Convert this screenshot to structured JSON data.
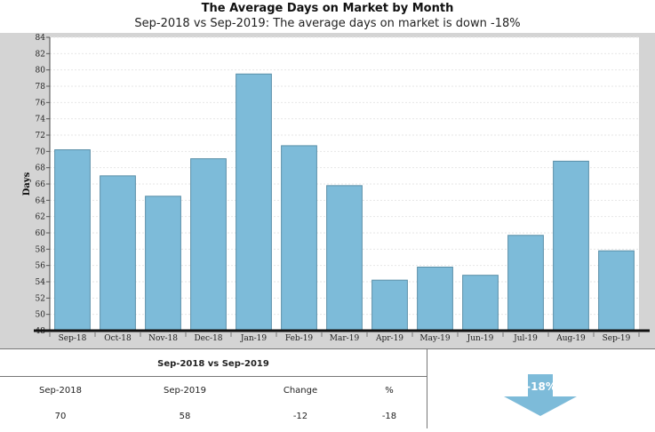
{
  "chart_data": {
    "type": "bar",
    "title": "The Average Days on Market by Month",
    "subtitle": "Sep-2018 vs Sep-2019: The average days on market is down -18%",
    "ylabel": "Days",
    "xlabel": "",
    "ylim": [
      48,
      84
    ],
    "yticks": [
      48,
      50,
      52,
      54,
      56,
      58,
      60,
      62,
      64,
      66,
      68,
      70,
      72,
      74,
      76,
      78,
      80,
      82,
      84
    ],
    "categories": [
      "Sep-18",
      "Oct-18",
      "Nov-18",
      "Dec-18",
      "Jan-19",
      "Feb-19",
      "Mar-19",
      "Apr-19",
      "May-19",
      "Jun-19",
      "Jul-19",
      "Aug-19",
      "Sep-19"
    ],
    "values": [
      70.2,
      67.0,
      64.5,
      69.1,
      79.5,
      70.7,
      65.8,
      54.2,
      55.8,
      54.8,
      59.7,
      68.8,
      57.8
    ],
    "grid": true,
    "bar_color": "#7dbbd9"
  },
  "summary": {
    "heading": "Sep-2018 vs Sep-2019",
    "columns": [
      "Sep-2018",
      "Sep-2019",
      "Change",
      "%"
    ],
    "values": [
      "70",
      "58",
      "-12",
      "-18"
    ],
    "arrow_label": "-18%",
    "arrow_color": "#7dbbd9"
  }
}
